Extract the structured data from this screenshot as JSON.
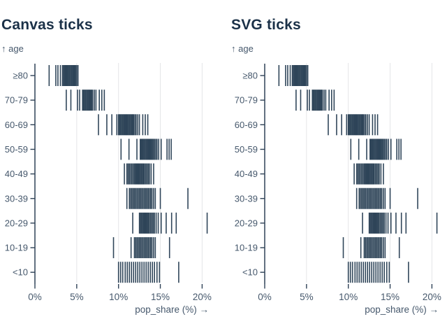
{
  "colors": {
    "background": "#ffffff",
    "title": "#1b3148",
    "label": "#46586c",
    "axis": "#2e4156",
    "tick": "#20384e",
    "gridline": "#e4e5e7"
  },
  "chart_data": {
    "type": "strip",
    "description": "Two identical barcode/rug strip plots (canvas vs SVG rendering); each short vertical tick is one pop_share observation for that age group",
    "charts": [
      {
        "title": "Canvas ticks"
      },
      {
        "title": "SVG ticks"
      }
    ],
    "ylabel": "↑ age",
    "xlabel": "pop_share (%) →",
    "categories": [
      "≥80",
      "70-79",
      "60-69",
      "50-59",
      "40-49",
      "30-39",
      "20-29",
      "10-19",
      "<10"
    ],
    "xlim": [
      0,
      21
    ],
    "x_ticks": [
      0,
      5,
      10,
      15,
      20
    ],
    "x_tick_labels": [
      "0%",
      "5%",
      "10%",
      "15%",
      "20%"
    ],
    "grid": "vertical gridlines at 5/10/15/20, dark y-axis at 0",
    "values": {
      "≥80": [
        1.7,
        2.5,
        2.75,
        3.05,
        3.3,
        3.42,
        3.54,
        3.66,
        3.78,
        3.9,
        4.02,
        4.14,
        4.26,
        4.38,
        4.5,
        4.62,
        4.74,
        4.86,
        5.0,
        5.15
      ],
      "70-79": [
        3.75,
        4.3,
        5.1,
        5.35,
        5.7,
        5.82,
        5.94,
        6.06,
        6.18,
        6.3,
        6.42,
        6.54,
        6.66,
        6.78,
        6.9,
        7.1,
        7.3,
        7.7,
        8.0,
        8.3
      ],
      "60-69": [
        7.6,
        8.6,
        9.2,
        9.8,
        10.0,
        10.12,
        10.24,
        10.36,
        10.48,
        10.6,
        10.72,
        10.84,
        10.96,
        11.08,
        11.2,
        11.32,
        11.44,
        11.56,
        11.68,
        11.8,
        11.95,
        12.1,
        12.3,
        12.5,
        12.9,
        13.2,
        13.5
      ],
      "50-59": [
        10.3,
        11.25,
        12.2,
        12.6,
        12.72,
        12.84,
        12.96,
        13.08,
        13.2,
        13.32,
        13.44,
        13.56,
        13.68,
        13.8,
        13.92,
        14.04,
        14.16,
        14.3,
        14.45,
        14.6,
        14.8,
        15.1,
        15.8,
        16.05,
        16.3
      ],
      "40-49": [
        10.7,
        11.0,
        11.15,
        11.3,
        11.45,
        11.6,
        11.75,
        11.9,
        12.02,
        12.14,
        12.26,
        12.38,
        12.5,
        12.62,
        12.74,
        12.86,
        12.98,
        13.1,
        13.25,
        13.4,
        13.55,
        13.7,
        13.9,
        14.2
      ],
      "30-39": [
        11.0,
        11.3,
        11.45,
        11.6,
        11.75,
        11.9,
        12.05,
        12.2,
        12.35,
        12.5,
        12.65,
        12.8,
        12.95,
        13.1,
        13.25,
        13.4,
        13.55,
        13.7,
        13.85,
        14.0,
        14.2,
        14.4,
        15.0,
        18.3
      ],
      "20-29": [
        11.7,
        12.5,
        12.62,
        12.74,
        12.86,
        12.98,
        13.1,
        13.22,
        13.34,
        13.46,
        13.58,
        13.7,
        13.85,
        14.0,
        14.15,
        14.3,
        14.5,
        14.75,
        15.1,
        15.7,
        16.35,
        16.9,
        20.6
      ],
      "10-19": [
        9.4,
        11.5,
        11.9,
        12.05,
        12.2,
        12.35,
        12.5,
        12.65,
        12.8,
        12.95,
        13.1,
        13.25,
        13.4,
        13.55,
        13.7,
        13.85,
        14.0,
        14.2,
        14.4,
        16.1
      ],
      "<10": [
        10.0,
        10.25,
        10.5,
        10.8,
        11.05,
        11.3,
        11.55,
        11.8,
        12.05,
        12.3,
        12.55,
        12.8,
        13.05,
        13.3,
        13.55,
        13.8,
        14.05,
        14.3,
        14.6,
        14.9,
        17.2
      ]
    }
  }
}
